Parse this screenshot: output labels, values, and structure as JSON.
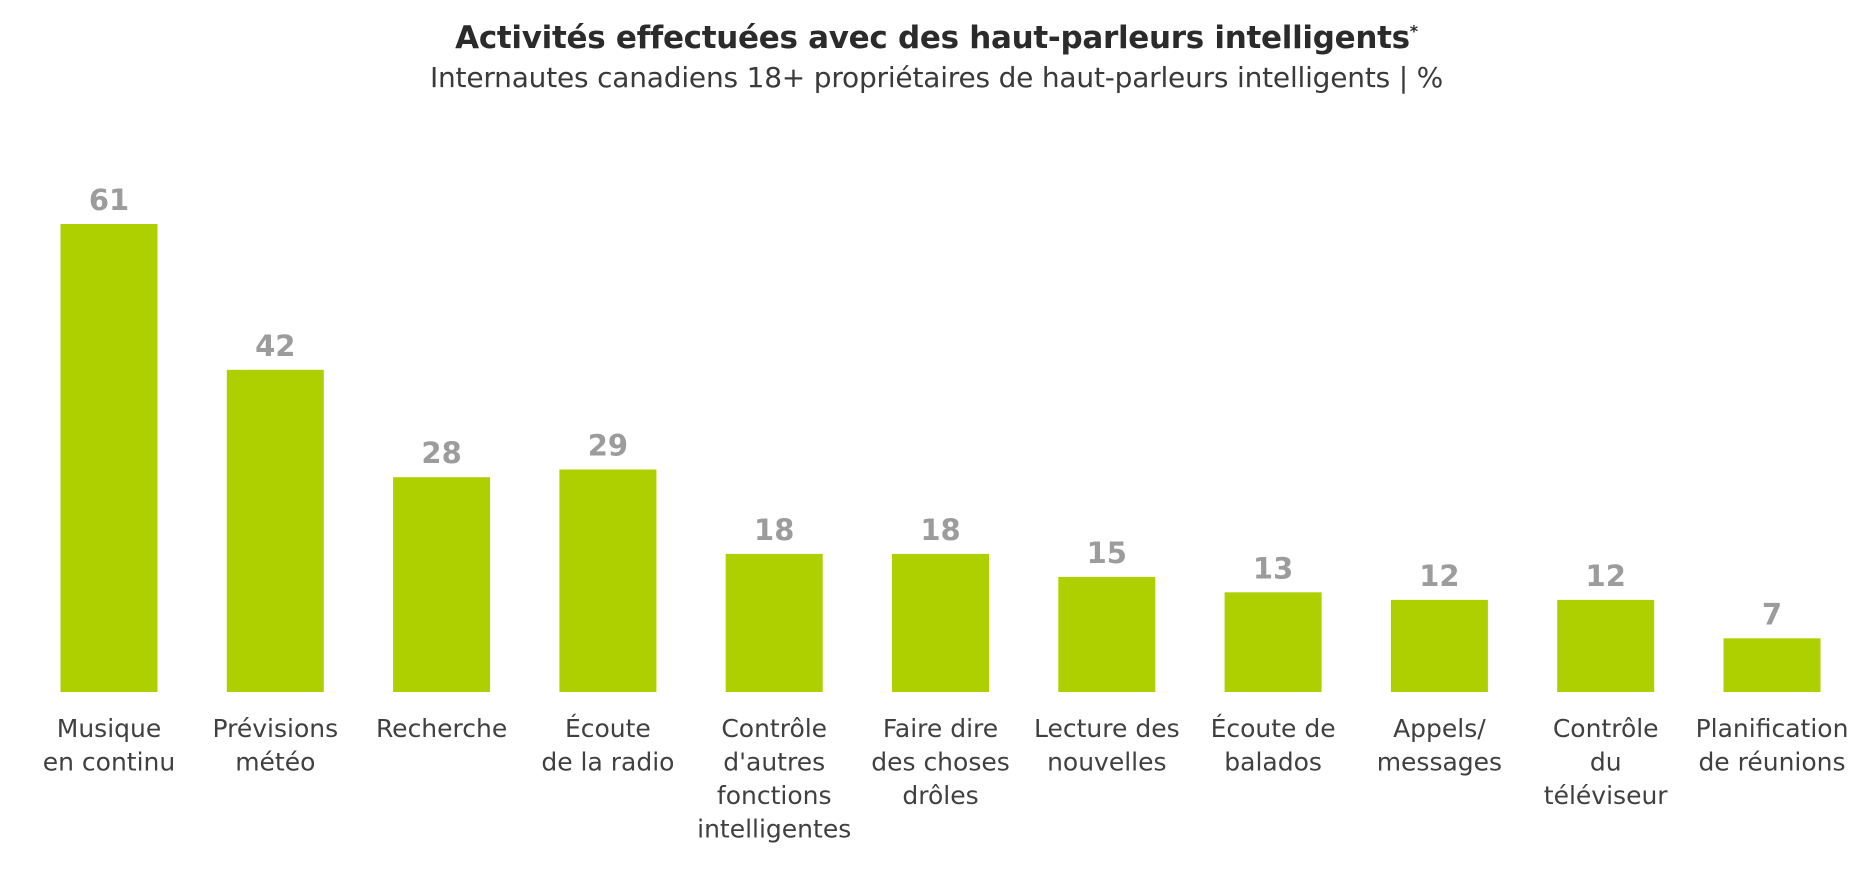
{
  "header": {
    "title": "Activités effectuées avec des haut-parleurs intelligents",
    "title_marker": "*",
    "subtitle": "Internautes canadiens 18+ propriétaires de haut-parleurs intelligents | %"
  },
  "chart_data": {
    "type": "bar",
    "categories": [
      [
        "Musique",
        "en continu"
      ],
      [
        "Prévisions",
        "météo"
      ],
      [
        "Recherche"
      ],
      [
        "Écoute",
        "de la radio"
      ],
      [
        "Contrôle",
        "d'autres",
        "fonctions",
        "intelligentes"
      ],
      [
        "Faire dire",
        "des choses",
        "drôles"
      ],
      [
        "Lecture des",
        "nouvelles"
      ],
      [
        "Écoute de",
        "balados"
      ],
      [
        "Appels/",
        "messages"
      ],
      [
        "Contrôle",
        "du",
        "téléviseur"
      ],
      [
        "Planification",
        "de réunions"
      ]
    ],
    "values": [
      61,
      42,
      28,
      29,
      18,
      18,
      15,
      13,
      12,
      12,
      7
    ],
    "ylim": [
      0,
      61
    ],
    "bar_color": "#aed000",
    "value_label_color": "#9c9c9c",
    "grid": false,
    "legend": "none"
  }
}
